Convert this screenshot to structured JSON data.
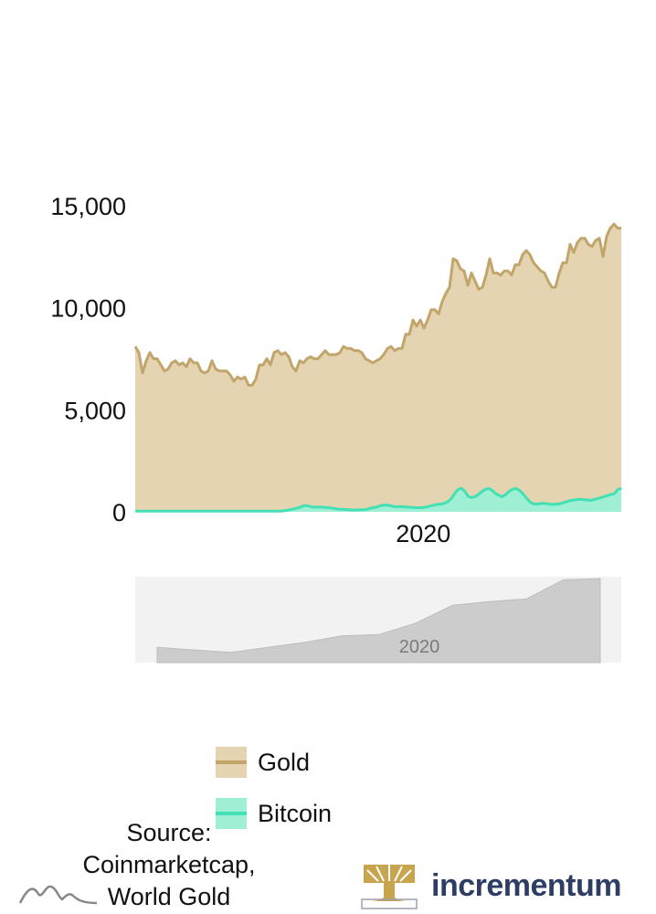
{
  "chart_data": {
    "type": "area",
    "x_tick_labels": [
      "2020"
    ],
    "y_ticks": [
      0,
      5000,
      10000,
      15000
    ],
    "y_tick_labels": [
      "0",
      "5,000",
      "10,000",
      "15,000"
    ],
    "ylim": [
      0,
      15000
    ],
    "series": [
      {
        "name": "Gold",
        "line_color": "#c2a56a",
        "fill_color": "#e5d4b2",
        "values": [
          8100,
          7800,
          6800,
          7400,
          7800,
          7500,
          7500,
          7200,
          6900,
          7000,
          7300,
          7400,
          7200,
          7300,
          7100,
          7500,
          7300,
          7300,
          6900,
          6800,
          6900,
          7400,
          7000,
          6900,
          6900,
          6900,
          6700,
          6400,
          6600,
          6500,
          6600,
          6200,
          6200,
          6500,
          7200,
          7200,
          7500,
          7200,
          7800,
          7900,
          7700,
          7800,
          7600,
          7100,
          6900,
          7400,
          7300,
          7500,
          7600,
          7500,
          7500,
          7700,
          7900,
          7700,
          7700,
          7700,
          7800,
          8100,
          8000,
          8000,
          7900,
          7900,
          7800,
          7500,
          7400,
          7300,
          7400,
          7500,
          7700,
          8000,
          8100,
          7900,
          8000,
          8000,
          8700,
          8700,
          9400,
          9100,
          9400,
          9000,
          9400,
          9900,
          9900,
          9700,
          10300,
          10700,
          11000,
          12400,
          12300,
          11900,
          11800,
          11100,
          11700,
          11300,
          10900,
          11000,
          11600,
          12400,
          11700,
          11700,
          11600,
          11800,
          11800,
          11600,
          12100,
          12100,
          12600,
          12800,
          12600,
          12200,
          12000,
          11800,
          11700,
          11300,
          11000,
          11000,
          11700,
          12200,
          12200,
          13100,
          12700,
          13200,
          13400,
          13400,
          13100,
          13000,
          13300,
          13400,
          12500,
          13500,
          13900,
          14100,
          13900,
          13900
        ],
        "x_year_span": [
          2016.8,
          2022.2
        ]
      },
      {
        "name": "Bitcoin",
        "line_color": "#43e0b5",
        "fill_color": "#9eefd3",
        "values": [
          30,
          30,
          30,
          30,
          30,
          30,
          30,
          30,
          30,
          30,
          30,
          30,
          30,
          30,
          30,
          30,
          30,
          30,
          30,
          30,
          30,
          30,
          30,
          30,
          30,
          30,
          30,
          30,
          30,
          30,
          30,
          30,
          30,
          30,
          30,
          30,
          30,
          30,
          30,
          30,
          30,
          30,
          30,
          40,
          60,
          90,
          120,
          160,
          200,
          260,
          320,
          280,
          240,
          230,
          240,
          230,
          220,
          200,
          180,
          150,
          130,
          120,
          110,
          100,
          90,
          90,
          100,
          100,
          120,
          170,
          200,
          230,
          300,
          330,
          330,
          310,
          260,
          250,
          260,
          250,
          230,
          220,
          210,
          200,
          200,
          220,
          250,
          300,
          330,
          370,
          380,
          420,
          500,
          650,
          900,
          1100,
          1150,
          1000,
          750,
          700,
          750,
          850,
          1000,
          1100,
          1150,
          1050,
          900,
          800,
          750,
          850,
          1000,
          1100,
          1150,
          1050,
          900,
          700,
          500,
          400,
          380,
          400,
          420,
          400,
          380,
          360,
          380,
          400,
          450,
          500,
          550,
          580,
          600,
          620,
          600,
          580,
          560,
          600,
          650,
          700,
          750,
          800,
          850,
          900,
          1100,
          1150
        ]
      }
    ],
    "navigator": {
      "x_tick_labels": [
        "2020"
      ],
      "values": [
        1.2,
        1.0,
        0.8,
        1.2,
        1.6,
        2.1,
        2.2,
        3.1,
        4.5,
        4.8,
        5.0,
        6.5,
        6.6
      ]
    },
    "legend_position": "bottom",
    "grid": false
  },
  "source": {
    "label": "Source: Coinmarketcap, World Gold"
  },
  "branding": {
    "company": "incrementum"
  },
  "colors": {
    "gold_line": "#c2a56a",
    "gold_fill": "#e5d4b2",
    "bitcoin_line": "#43e0b5",
    "bitcoin_fill": "#9eefd3",
    "brand_navy": "#2e3d63",
    "brand_gold": "#c9a44f"
  }
}
